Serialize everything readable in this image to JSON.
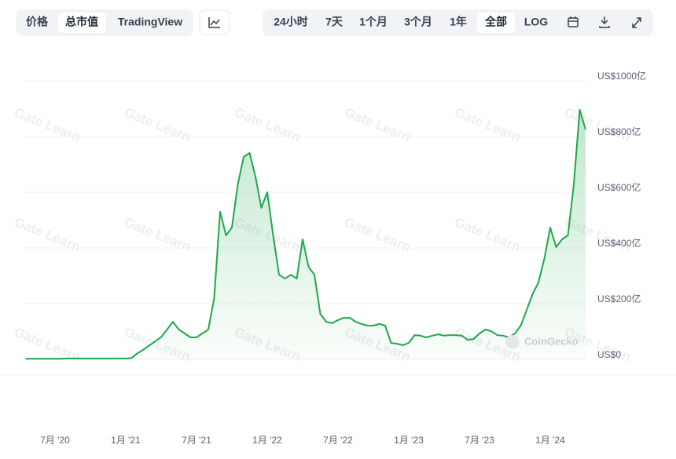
{
  "toolbar": {
    "view": [
      "价格",
      "总市值",
      "TradingView"
    ],
    "range": [
      "24小时",
      "7天",
      "1个月",
      "3个月",
      "1年",
      "全部",
      "LOG"
    ]
  },
  "chart_data": {
    "type": "line",
    "categories": [
      null,
      null,
      null,
      null,
      null,
      "7月 '20",
      null,
      null,
      null,
      null,
      null,
      null,
      null,
      null,
      null,
      null,
      null,
      "1月 '21",
      null,
      null,
      null,
      null,
      null,
      null,
      null,
      null,
      null,
      null,
      null,
      "7月 '21",
      null,
      null,
      null,
      null,
      null,
      null,
      null,
      null,
      null,
      null,
      null,
      "1月 '22",
      null,
      null,
      null,
      null,
      null,
      null,
      null,
      null,
      null,
      null,
      null,
      "7月 '22",
      null,
      null,
      null,
      null,
      null,
      null,
      null,
      null,
      null,
      null,
      null,
      "1月 '23",
      null,
      null,
      null,
      null,
      null,
      null,
      null,
      null,
      null,
      null,
      null,
      "7月 '23",
      null,
      null,
      null,
      null,
      null,
      null,
      null,
      null,
      null,
      null,
      null,
      "1月 '24",
      null,
      null,
      null,
      null,
      null,
      null
    ],
    "values": [
      2,
      2,
      2,
      2,
      2,
      2,
      2,
      3,
      3,
      3,
      3,
      3,
      3,
      3,
      3,
      3,
      3,
      3,
      5,
      22,
      35,
      50,
      65,
      80,
      107,
      135,
      107,
      93,
      79,
      79,
      93,
      107,
      220,
      530,
      445,
      473,
      628,
      727,
      741,
      656,
      544,
      600,
      445,
      304,
      290,
      304,
      290,
      431,
      332,
      304,
      163,
      135,
      130,
      141,
      149,
      149,
      135,
      127,
      121,
      121,
      127,
      121,
      59,
      56,
      51,
      59,
      87,
      85,
      79,
      85,
      90,
      85,
      87,
      87,
      85,
      70,
      73,
      93,
      107,
      101,
      87,
      85,
      79,
      93,
      121,
      177,
      234,
      276,
      361,
      473,
      403,
      431,
      445,
      628,
      896,
      825
    ],
    "color": "#1ea84a",
    "ylim": [
      0,
      1000
    ],
    "yticks": [
      {
        "value": 0,
        "label": "US$0"
      },
      {
        "value": 200,
        "label": "US$200亿"
      },
      {
        "value": 400,
        "label": "US$400亿"
      },
      {
        "value": 600,
        "label": "US$600亿"
      },
      {
        "value": 800,
        "label": "US$800亿"
      },
      {
        "value": 1000,
        "label": "US$1000亿"
      }
    ],
    "grid": true,
    "watermarks": [
      "Gate Learn",
      "CoinGecko"
    ]
  }
}
